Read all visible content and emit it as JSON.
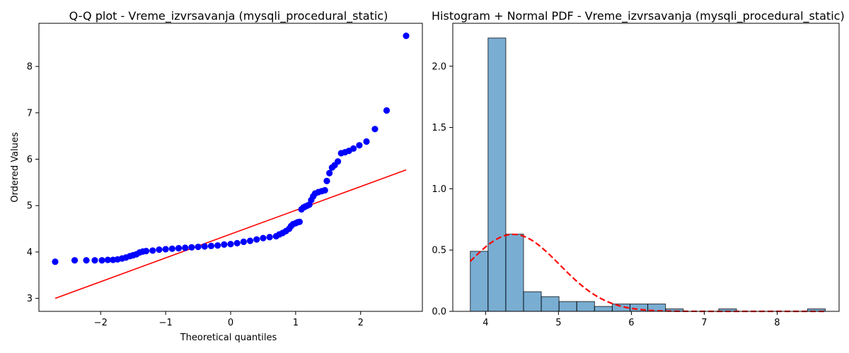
{
  "chart_data": [
    {
      "type": "scatter",
      "title": "Q-Q plot - Vreme_izvrsavanja (mysqli_procedural_static)",
      "xlabel": "Theoretical quantiles",
      "ylabel": "Ordered Values",
      "xlim": [
        -2.95,
        2.95
      ],
      "ylim": [
        2.72,
        8.93
      ],
      "xticks": [
        -2,
        -1,
        0,
        1,
        2
      ],
      "xtick_labels": [
        "−2",
        "−1",
        "0",
        "1",
        "2"
      ],
      "yticks": [
        3,
        4,
        5,
        6,
        7,
        8
      ],
      "ytick_labels": [
        "3",
        "4",
        "5",
        "6",
        "7",
        "8"
      ],
      "grid": false,
      "series": [
        {
          "role": "points",
          "color": "#0000ff",
          "x": [
            -2.7,
            -2.4,
            -2.22,
            -2.09,
            -1.98,
            -1.89,
            -1.81,
            -1.74,
            -1.67,
            -1.61,
            -1.55,
            -1.5,
            -1.45,
            -1.4,
            -1.35,
            -1.3,
            -1.2,
            -1.1,
            -1.0,
            -0.9,
            -0.8,
            -0.7,
            -0.6,
            -0.5,
            -0.4,
            -0.3,
            -0.2,
            -0.1,
            0.0,
            0.1,
            0.2,
            0.3,
            0.4,
            0.5,
            0.6,
            0.7,
            0.75,
            0.8,
            0.85,
            0.9,
            0.93,
            0.96,
            1.0,
            1.03,
            1.06,
            1.09,
            1.12,
            1.15,
            1.18,
            1.21,
            1.24,
            1.27,
            1.3,
            1.35,
            1.4,
            1.45,
            1.48,
            1.52,
            1.56,
            1.6,
            1.65,
            1.7,
            1.76,
            1.82,
            1.89,
            1.98,
            2.09,
            2.22,
            2.4,
            2.7
          ],
          "y": [
            3.79,
            3.82,
            3.82,
            3.82,
            3.82,
            3.83,
            3.83,
            3.84,
            3.86,
            3.88,
            3.91,
            3.93,
            3.95,
            3.99,
            4.01,
            4.02,
            4.03,
            4.05,
            4.06,
            4.07,
            4.08,
            4.09,
            4.1,
            4.11,
            4.12,
            4.13,
            4.14,
            4.16,
            4.17,
            4.19,
            4.22,
            4.24,
            4.27,
            4.3,
            4.32,
            4.34,
            4.38,
            4.41,
            4.45,
            4.5,
            4.56,
            4.6,
            4.62,
            4.64,
            4.65,
            4.92,
            4.96,
            4.98,
            5.0,
            5.02,
            5.12,
            5.2,
            5.26,
            5.29,
            5.31,
            5.33,
            5.53,
            5.7,
            5.82,
            5.87,
            5.95,
            6.13,
            6.15,
            6.18,
            6.23,
            6.3,
            6.38,
            6.65,
            7.05,
            8.66
          ]
        },
        {
          "role": "fit-line",
          "color": "#ff0000",
          "x": [
            -2.7,
            2.7
          ],
          "y": [
            3.0,
            5.77
          ]
        }
      ]
    },
    {
      "type": "bar",
      "subtype": "histogram",
      "title": "Histogram + Normal PDF - Vreme_izvrsavanja (mysqli_procedural_static)",
      "xlabel": "",
      "ylabel": "",
      "xlim": [
        3.55,
        8.85
      ],
      "ylim": [
        0,
        2.35
      ],
      "xticks": [
        4,
        5,
        6,
        7,
        8
      ],
      "xtick_labels": [
        "4",
        "5",
        "6",
        "7",
        "8"
      ],
      "yticks": [
        0.0,
        0.5,
        1.0,
        1.5,
        2.0
      ],
      "ytick_labels": [
        "0.0",
        "0.5",
        "1.0",
        "1.5",
        "2.0"
      ],
      "grid": false,
      "bar_color": "#1f77b4",
      "bar_edge": "#000000",
      "bin_start": 3.79,
      "bin_width": 0.2435,
      "values": [
        0.49,
        2.23,
        0.63,
        0.16,
        0.12,
        0.08,
        0.08,
        0.04,
        0.06,
        0.06,
        0.06,
        0.02,
        0.0,
        0.0,
        0.02,
        0.0,
        0.0,
        0.0,
        0.0,
        0.02
      ],
      "pdf_curve": {
        "color": "#ff0000",
        "style": "dashed",
        "mean": 4.38,
        "std": 0.635
      }
    }
  ]
}
